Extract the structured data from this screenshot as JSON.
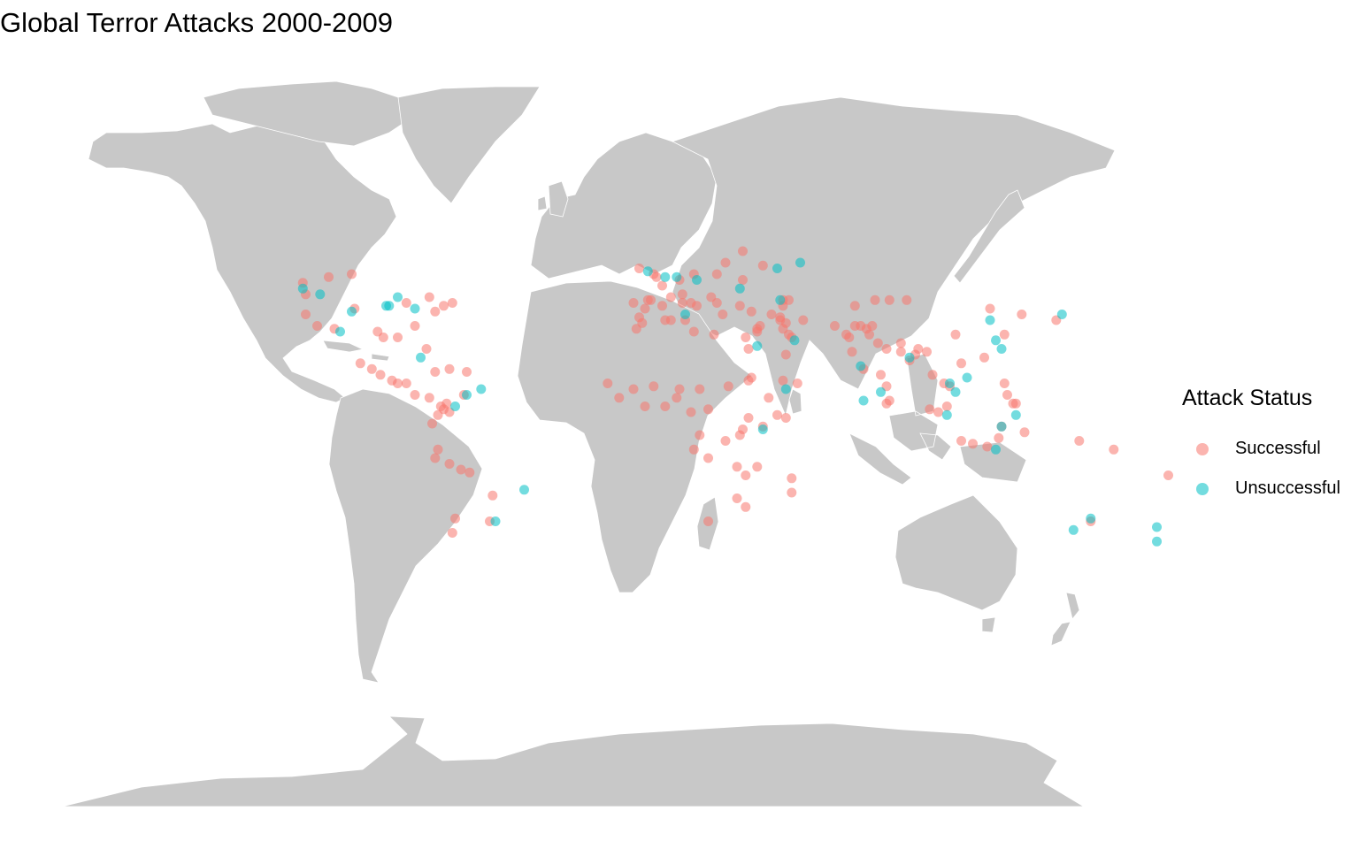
{
  "title": "Global Terror Attacks 2000-2009",
  "colors": {
    "land": "#c8c8c8",
    "border": "#ffffff",
    "background": "#ffffff",
    "successful": "#f8766d",
    "unsuccessful": "#00bfc4"
  },
  "legend": {
    "title": "Attack Status",
    "placement": "right",
    "items": [
      {
        "label": "Successful",
        "color": "#f8766d"
      },
      {
        "label": "Unsuccessful",
        "color": "#00bfc4"
      }
    ]
  },
  "chart_data": {
    "type": "scatter",
    "projection": "equirectangular",
    "title": "Global Terror Attacks 2000-2009",
    "series": [
      {
        "name": "Successful",
        "color": "#f8766d",
        "points": [
          {
            "lon": -123,
            "lat": 49
          },
          {
            "lon": -122,
            "lat": 45
          },
          {
            "lon": -122,
            "lat": 38
          },
          {
            "lon": -118,
            "lat": 34
          },
          {
            "lon": -112,
            "lat": 33
          },
          {
            "lon": -105,
            "lat": 40
          },
          {
            "lon": -97,
            "lat": 32
          },
          {
            "lon": -95,
            "lat": 30
          },
          {
            "lon": -90,
            "lat": 30
          },
          {
            "lon": -87,
            "lat": 42
          },
          {
            "lon": -84,
            "lat": 34
          },
          {
            "lon": -80,
            "lat": 26
          },
          {
            "lon": -77,
            "lat": 39
          },
          {
            "lon": -74,
            "lat": 41
          },
          {
            "lon": -71,
            "lat": 42
          },
          {
            "lon": -79,
            "lat": 44
          },
          {
            "lon": -114,
            "lat": 51
          },
          {
            "lon": -106,
            "lat": 52
          },
          {
            "lon": -99,
            "lat": 19
          },
          {
            "lon": -103,
            "lat": 21
          },
          {
            "lon": -96,
            "lat": 17
          },
          {
            "lon": -92,
            "lat": 15
          },
          {
            "lon": -90,
            "lat": 14
          },
          {
            "lon": -87,
            "lat": 14
          },
          {
            "lon": -84,
            "lat": 10
          },
          {
            "lon": -79,
            "lat": 9
          },
          {
            "lon": -77,
            "lat": 18
          },
          {
            "lon": -72,
            "lat": 19
          },
          {
            "lon": -66,
            "lat": 18
          },
          {
            "lon": -74,
            "lat": 5
          },
          {
            "lon": -75,
            "lat": 6
          },
          {
            "lon": -76,
            "lat": 3
          },
          {
            "lon": -73,
            "lat": 7
          },
          {
            "lon": -72,
            "lat": 4
          },
          {
            "lon": -67,
            "lat": 10
          },
          {
            "lon": -78,
            "lat": 0
          },
          {
            "lon": -77,
            "lat": -12
          },
          {
            "lon": -76,
            "lat": -9
          },
          {
            "lon": -72,
            "lat": -14
          },
          {
            "lon": -68,
            "lat": -16
          },
          {
            "lon": -65,
            "lat": -17
          },
          {
            "lon": -70,
            "lat": -33
          },
          {
            "lon": -71,
            "lat": -38
          },
          {
            "lon": -58,
            "lat": -34
          },
          {
            "lon": -57,
            "lat": -25
          },
          {
            "lon": -4,
            "lat": 40
          },
          {
            "lon": -3,
            "lat": 43
          },
          {
            "lon": -2,
            "lat": 43
          },
          {
            "lon": -8,
            "lat": 42
          },
          {
            "lon": -6,
            "lat": 37
          },
          {
            "lon": 2,
            "lat": 41
          },
          {
            "lon": 2,
            "lat": 48
          },
          {
            "lon": 9,
            "lat": 42
          },
          {
            "lon": 5,
            "lat": 44
          },
          {
            "lon": 12,
            "lat": 42
          },
          {
            "lon": 14,
            "lat": 41
          },
          {
            "lon": 9,
            "lat": 45
          },
          {
            "lon": 13,
            "lat": 52
          },
          {
            "lon": 8,
            "lat": 50
          },
          {
            "lon": -6,
            "lat": 54
          },
          {
            "lon": -1,
            "lat": 52
          },
          {
            "lon": 0,
            "lat": 51
          },
          {
            "lon": 21,
            "lat": 52
          },
          {
            "lon": 24,
            "lat": 56
          },
          {
            "lon": 30,
            "lat": 50
          },
          {
            "lon": 37,
            "lat": 55
          },
          {
            "lon": 30,
            "lat": 60
          },
          {
            "lon": 23,
            "lat": 38
          },
          {
            "lon": 21,
            "lat": 42
          },
          {
            "lon": 19,
            "lat": 44
          },
          {
            "lon": 29,
            "lat": 41
          },
          {
            "lon": 33,
            "lat": 39
          },
          {
            "lon": 40,
            "lat": 38
          },
          {
            "lon": 43,
            "lat": 37
          },
          {
            "lon": 44,
            "lat": 41
          },
          {
            "lon": 44,
            "lat": 43
          },
          {
            "lon": 46,
            "lat": 43
          },
          {
            "lon": 35,
            "lat": 32
          },
          {
            "lon": 35,
            "lat": 33
          },
          {
            "lon": 36,
            "lat": 34
          },
          {
            "lon": 44,
            "lat": 33
          },
          {
            "lon": 43,
            "lat": 36
          },
          {
            "lon": 45,
            "lat": 35
          },
          {
            "lon": 46,
            "lat": 31
          },
          {
            "lon": 47,
            "lat": 30
          },
          {
            "lon": 51,
            "lat": 36
          },
          {
            "lon": 45,
            "lat": 24
          },
          {
            "lon": 44,
            "lat": 15
          },
          {
            "lon": 49,
            "lat": 14
          },
          {
            "lon": 69,
            "lat": 34
          },
          {
            "lon": 66,
            "lat": 31
          },
          {
            "lon": 62,
            "lat": 34
          },
          {
            "lon": 71,
            "lat": 34
          },
          {
            "lon": 73,
            "lat": 33
          },
          {
            "lon": 67,
            "lat": 30
          },
          {
            "lon": 68,
            "lat": 25
          },
          {
            "lon": 74,
            "lat": 31
          },
          {
            "lon": 75,
            "lat": 34
          },
          {
            "lon": 77,
            "lat": 28
          },
          {
            "lon": 80,
            "lat": 26
          },
          {
            "lon": 85,
            "lat": 25
          },
          {
            "lon": 88,
            "lat": 22
          },
          {
            "lon": 91,
            "lat": 26
          },
          {
            "lon": 94,
            "lat": 25
          },
          {
            "lon": 72,
            "lat": 19
          },
          {
            "lon": 78,
            "lat": 17
          },
          {
            "lon": 80,
            "lat": 13
          },
          {
            "lon": 80,
            "lat": 7
          },
          {
            "lon": 81,
            "lat": 8
          },
          {
            "lon": 85,
            "lat": 28
          },
          {
            "lon": 90,
            "lat": 24
          },
          {
            "lon": 96,
            "lat": 17
          },
          {
            "lon": 100,
            "lat": 14
          },
          {
            "lon": 101,
            "lat": 6
          },
          {
            "lon": 102,
            "lat": 13
          },
          {
            "lon": 106,
            "lat": 21
          },
          {
            "lon": 121,
            "lat": 14
          },
          {
            "lon": 122,
            "lat": 10
          },
          {
            "lon": 124,
            "lat": 7
          },
          {
            "lon": 125,
            "lat": 7
          },
          {
            "lon": 106,
            "lat": -6
          },
          {
            "lon": 110,
            "lat": -7
          },
          {
            "lon": 115,
            "lat": -8
          },
          {
            "lon": 98,
            "lat": 4
          },
          {
            "lon": 95,
            "lat": 5
          },
          {
            "lon": 119,
            "lat": -5
          },
          {
            "lon": 120,
            "lat": -1
          },
          {
            "lon": 128,
            "lat": -3
          },
          {
            "lon": 116,
            "lat": 40
          },
          {
            "lon": 121,
            "lat": 31
          },
          {
            "lon": 114,
            "lat": 23
          },
          {
            "lon": 104,
            "lat": 31
          },
          {
            "lon": 87,
            "lat": 43
          },
          {
            "lon": 81,
            "lat": 43
          },
          {
            "lon": 127,
            "lat": 38
          },
          {
            "lon": 139,
            "lat": 36
          },
          {
            "lon": 76,
            "lat": 43
          },
          {
            "lon": 69,
            "lat": 41
          },
          {
            "lon": 3,
            "lat": 36
          },
          {
            "lon": 5,
            "lat": 36
          },
          {
            "lon": -7,
            "lat": 33
          },
          {
            "lon": -5,
            "lat": 35
          },
          {
            "lon": 10,
            "lat": 36
          },
          {
            "lon": 13,
            "lat": 32
          },
          {
            "lon": 20,
            "lat": 31
          },
          {
            "lon": 31,
            "lat": 30
          },
          {
            "lon": 32,
            "lat": 26
          },
          {
            "lon": 33,
            "lat": 16
          },
          {
            "lon": 25,
            "lat": 13
          },
          {
            "lon": 32,
            "lat": 15
          },
          {
            "lon": 39,
            "lat": 9
          },
          {
            "lon": 45,
            "lat": 2
          },
          {
            "lon": 42,
            "lat": 3
          },
          {
            "lon": 37,
            "lat": -1
          },
          {
            "lon": 30,
            "lat": -2
          },
          {
            "lon": 32,
            "lat": 2
          },
          {
            "lon": 29,
            "lat": -4
          },
          {
            "lon": 15,
            "lat": -4
          },
          {
            "lon": 24,
            "lat": -6
          },
          {
            "lon": 13,
            "lat": -9
          },
          {
            "lon": 18,
            "lat": -12
          },
          {
            "lon": 7,
            "lat": 9
          },
          {
            "lon": 3,
            "lat": 6
          },
          {
            "lon": 8,
            "lat": 12
          },
          {
            "lon": -1,
            "lat": 13
          },
          {
            "lon": -8,
            "lat": 12
          },
          {
            "lon": -17,
            "lat": 14
          },
          {
            "lon": -13,
            "lat": 9
          },
          {
            "lon": -4,
            "lat": 6
          },
          {
            "lon": 12,
            "lat": 4
          },
          {
            "lon": 18,
            "lat": 5
          },
          {
            "lon": 15,
            "lat": 12
          },
          {
            "lon": 28,
            "lat": -15
          },
          {
            "lon": 31,
            "lat": -18
          },
          {
            "lon": 35,
            "lat": -15
          },
          {
            "lon": 28,
            "lat": -26
          },
          {
            "lon": 31,
            "lat": -29
          },
          {
            "lon": 18,
            "lat": -34
          },
          {
            "lon": 47,
            "lat": -19
          },
          {
            "lon": 47,
            "lat": -24
          },
          {
            "lon": 178,
            "lat": -18
          },
          {
            "lon": 159,
            "lat": -9
          },
          {
            "lon": 151,
            "lat": -34
          },
          {
            "lon": 147,
            "lat": -6
          }
        ]
      },
      {
        "name": "Unsuccessful",
        "color": "#00bfc4",
        "points": [
          {
            "lon": -123,
            "lat": 47
          },
          {
            "lon": -117,
            "lat": 45
          },
          {
            "lon": -94,
            "lat": 41
          },
          {
            "lon": -93,
            "lat": 41
          },
          {
            "lon": -90,
            "lat": 44
          },
          {
            "lon": -84,
            "lat": 40
          },
          {
            "lon": -106,
            "lat": 39
          },
          {
            "lon": -110,
            "lat": 32
          },
          {
            "lon": -82,
            "lat": 23
          },
          {
            "lon": -61,
            "lat": 12
          },
          {
            "lon": -66,
            "lat": 10
          },
          {
            "lon": -70,
            "lat": 6
          },
          {
            "lon": -46,
            "lat": -23
          },
          {
            "lon": -56,
            "lat": -34
          },
          {
            "lon": -3,
            "lat": 53
          },
          {
            "lon": 3,
            "lat": 51
          },
          {
            "lon": 7,
            "lat": 51
          },
          {
            "lon": 14,
            "lat": 50
          },
          {
            "lon": 10,
            "lat": 38
          },
          {
            "lon": 29,
            "lat": 47
          },
          {
            "lon": 42,
            "lat": 54
          },
          {
            "lon": 50,
            "lat": 56
          },
          {
            "lon": 43,
            "lat": 43
          },
          {
            "lon": 48,
            "lat": 29
          },
          {
            "lon": 35,
            "lat": 27
          },
          {
            "lon": 45,
            "lat": 12
          },
          {
            "lon": 71,
            "lat": 20
          },
          {
            "lon": 72,
            "lat": 8
          },
          {
            "lon": 102,
            "lat": 14
          },
          {
            "lon": 104,
            "lat": 11
          },
          {
            "lon": 108,
            "lat": 16
          },
          {
            "lon": 116,
            "lat": 36
          },
          {
            "lon": 118,
            "lat": 29
          },
          {
            "lon": 120,
            "lat": 26
          },
          {
            "lon": 125,
            "lat": 3
          },
          {
            "lon": 120,
            "lat": -1
          },
          {
            "lon": 118,
            "lat": -9
          },
          {
            "lon": 141,
            "lat": 38
          },
          {
            "lon": 37,
            "lat": -2
          },
          {
            "lon": 151,
            "lat": -33
          },
          {
            "lon": 145,
            "lat": -37
          },
          {
            "lon": 174,
            "lat": -36
          },
          {
            "lon": 174,
            "lat": -41
          },
          {
            "lon": 101,
            "lat": 3
          },
          {
            "lon": 88,
            "lat": 23
          },
          {
            "lon": 78,
            "lat": 11
          }
        ]
      }
    ]
  }
}
